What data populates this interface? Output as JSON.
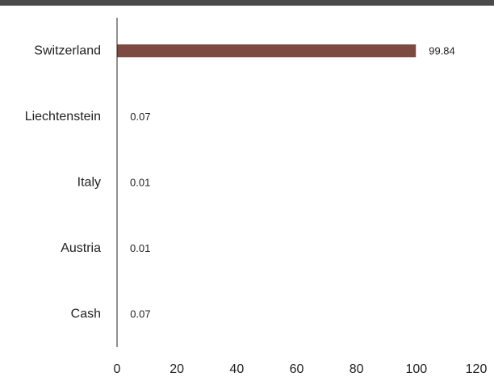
{
  "chart_data": {
    "type": "bar",
    "orientation": "horizontal",
    "categories": [
      "Switzerland",
      "Liechtenstein",
      "Italy",
      "Austria",
      "Cash"
    ],
    "values": [
      99.84,
      0.07,
      0.01,
      0.01,
      0.07
    ],
    "data_labels": [
      "99.84",
      "0.07",
      "0.01",
      "0.01",
      "0.07"
    ],
    "xlim": [
      0,
      120
    ],
    "xticks": [
      0,
      20,
      40,
      60,
      80,
      100,
      120
    ],
    "title": "",
    "xlabel": "",
    "ylabel": "",
    "grid": false,
    "legend": "none",
    "bar_color": "#7d4a42",
    "header_rule_color": "#4a4a4a"
  }
}
